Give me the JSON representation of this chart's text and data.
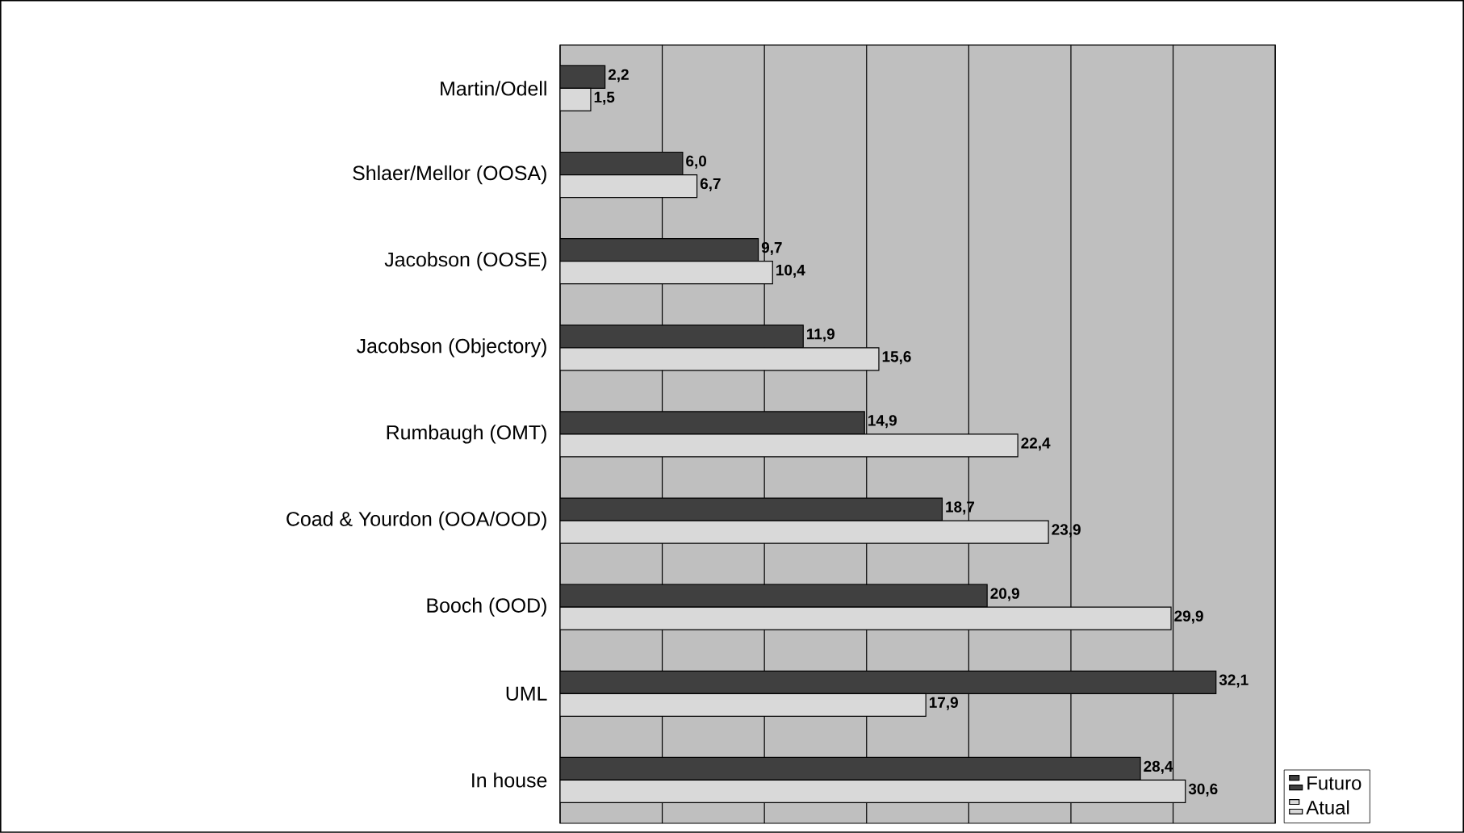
{
  "chart_data": {
    "type": "bar",
    "orientation": "horizontal",
    "categories": [
      "Martin/Odell",
      "Shlaer/Mellor (OOSA)",
      "Jacobson (OOSE)",
      "Jacobson (Objectory)",
      "Rumbaugh (OMT)",
      "Coad & Yourdon (OOA/OOD)",
      "Booch (OOD)",
      "UML",
      "In house"
    ],
    "series": [
      {
        "name": "Futuro",
        "color": "#404040",
        "values": [
          2.2,
          6.0,
          9.7,
          11.9,
          14.9,
          18.7,
          20.9,
          32.1,
          28.4
        ],
        "value_labels": [
          "2,2",
          "6,0",
          "9,7",
          "11,9",
          "14,9",
          "18,7",
          "20,9",
          "32,1",
          "28,4"
        ]
      },
      {
        "name": "Atual",
        "color": "#d9d9d9",
        "values": [
          1.5,
          6.7,
          10.4,
          15.6,
          22.4,
          23.9,
          29.9,
          17.9,
          30.6
        ],
        "value_labels": [
          "1,5",
          "6,7",
          "10,4",
          "15,6",
          "22,4",
          "23,9",
          "29,9",
          "17,9",
          "30,6"
        ]
      }
    ],
    "xlim": [
      0,
      35
    ],
    "xticks": [
      {
        "value": 0,
        "label": null
      },
      {
        "value": 5,
        "label": null
      },
      {
        "value": 10,
        "label": null
      },
      {
        "value": 15,
        "label": null
      },
      {
        "value": 20,
        "label": null
      },
      {
        "value": 25,
        "label": null
      },
      {
        "value": 30,
        "label": null
      },
      {
        "value": 35,
        "label": null
      }
    ],
    "grid": "x",
    "tick_labels": "y",
    "legend": "bottom right"
  }
}
